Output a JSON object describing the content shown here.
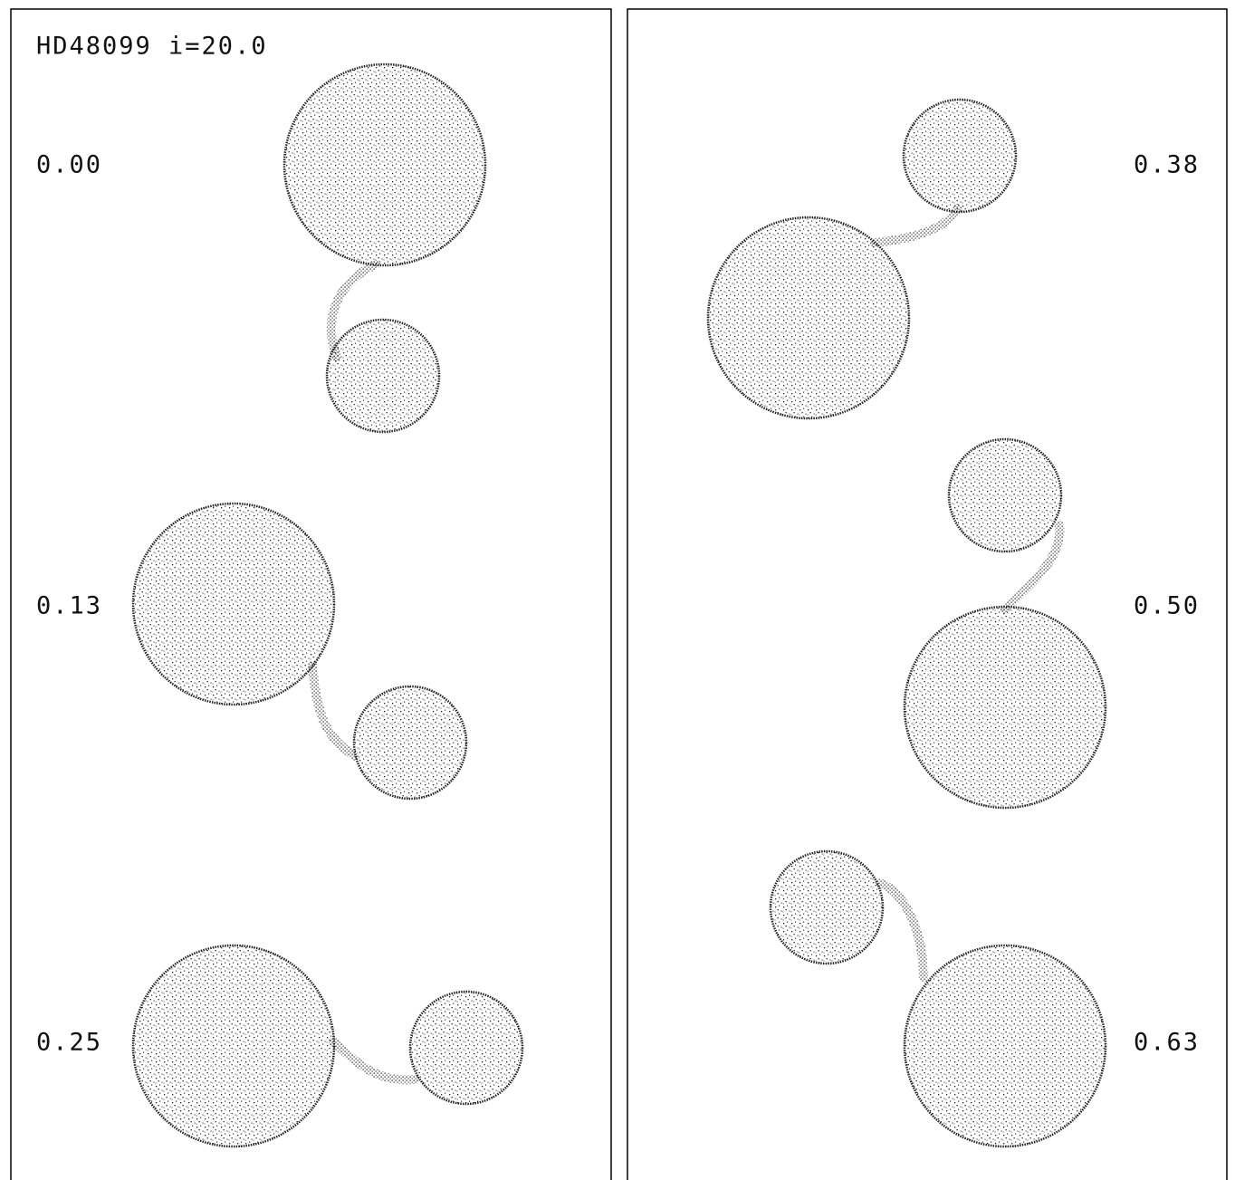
{
  "title": "HD48099 i=20.0",
  "phases": [
    "0.00",
    "0.13",
    "0.25",
    "0.38",
    "0.50",
    "0.63"
  ]
}
